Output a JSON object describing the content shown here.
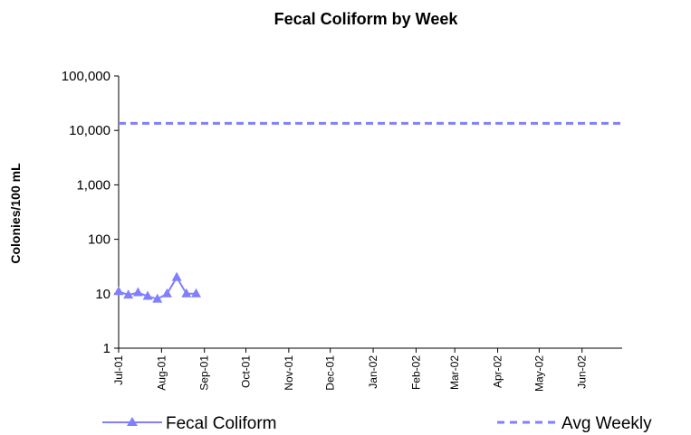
{
  "chart_data": {
    "type": "line",
    "title": "Fecal Coliform by Week",
    "xlabel": "",
    "ylabel": "Colonies/100 mL",
    "yscale": "log",
    "ylim": [
      1,
      100000
    ],
    "yticks": [
      1,
      10,
      100,
      1000,
      10000,
      100000
    ],
    "ytick_labels": [
      "1",
      "10",
      "100",
      "1,000",
      "10,000",
      "100,000"
    ],
    "xlim": [
      "2001-07-01",
      "2002-06-30"
    ],
    "xtick_labels": [
      "Jul-01",
      "Aug-01",
      "Sep-01",
      "Oct-01",
      "Nov-01",
      "Dec-01",
      "Jan-02",
      "Feb-02",
      "Mar-02",
      "Apr-02",
      "May-02",
      "Jun-02"
    ],
    "xtick_dates": [
      "2001-07-01",
      "2001-08-01",
      "2001-09-01",
      "2001-10-01",
      "2001-11-01",
      "2001-12-01",
      "2002-01-01",
      "2002-02-01",
      "2002-03-01",
      "2002-04-01",
      "2002-05-01",
      "2002-06-01"
    ],
    "grid": false,
    "legend": "bottom",
    "series": [
      {
        "name": "Fecal Coliform",
        "style": "solid line with triangle markers",
        "color": "#8080ff",
        "x": [
          "2001-07-01",
          "2001-07-08",
          "2001-07-15",
          "2001-07-22",
          "2001-07-29",
          "2001-08-05",
          "2001-08-12",
          "2001-08-19",
          "2001-08-26"
        ],
        "y": [
          11,
          9.5,
          10.5,
          9,
          8,
          10,
          20,
          10,
          10
        ]
      },
      {
        "name": "Avg Weekly",
        "style": "dashed line",
        "color": "#8080ff",
        "x": [
          "2001-07-01",
          "2002-06-30"
        ],
        "y": [
          13500,
          13500
        ]
      }
    ]
  }
}
